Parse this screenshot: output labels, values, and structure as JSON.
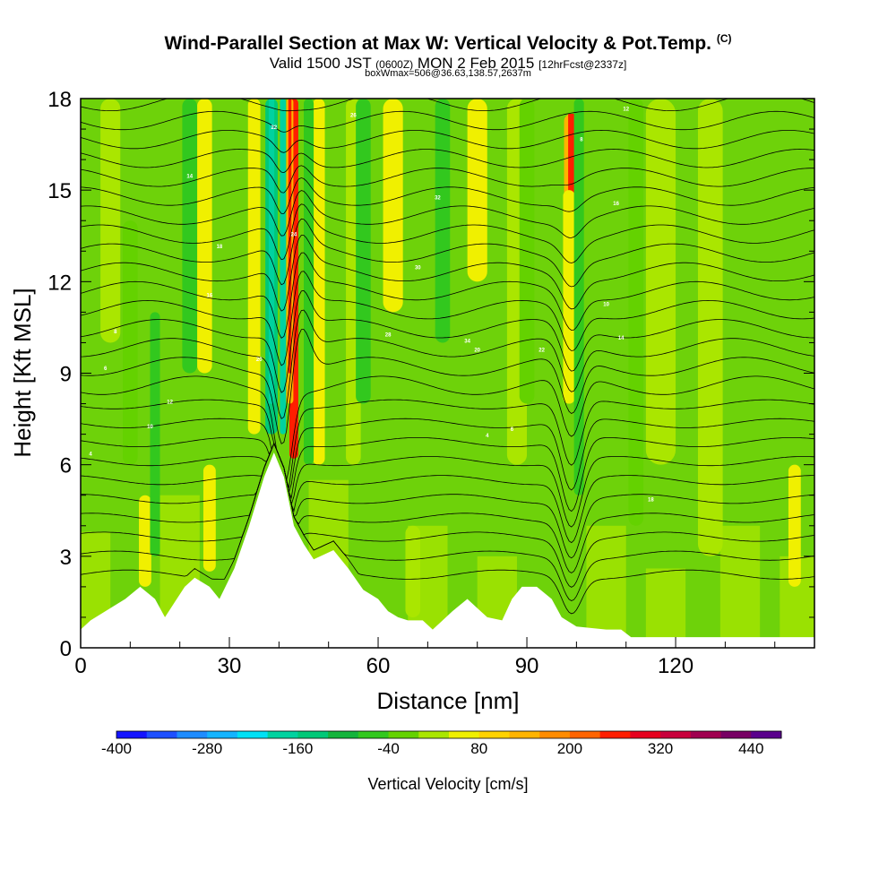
{
  "header": {
    "title": "Wind-Parallel Section at Max W: Vertical Velocity & Pot.Temp.",
    "copyright": "(C)",
    "valid_prefix": "Valid 1500 JST",
    "valid_utc": "(0600Z)",
    "valid_date": "MON 2 Feb 2015",
    "forecast": "[12hrFcst@2337z]",
    "box_info": "boxWmax=506@36.63,138.57,2637m"
  },
  "chart_data": {
    "type": "heatmap",
    "xlabel": "Distance [nm]",
    "ylabel": "Height [Kft MSL]",
    "xlim": [
      0,
      148
    ],
    "ylim": [
      0,
      18
    ],
    "x_ticks": [
      "0",
      "30",
      "60",
      "90",
      "120"
    ],
    "y_ticks": [
      "0",
      "3",
      "6",
      "9",
      "12",
      "15",
      "18"
    ],
    "colorbar": {
      "label": "Vertical Velocity [cm/s]",
      "tick_labels": [
        "-400",
        "-280",
        "-160",
        "-40",
        "80",
        "200",
        "320",
        "440"
      ],
      "colors": [
        "#1414ff",
        "#1e50ff",
        "#1e8cff",
        "#14b4ff",
        "#00e1f5",
        "#00d2a0",
        "#00c878",
        "#14b43c",
        "#32c81e",
        "#64d200",
        "#aae600",
        "#f0f000",
        "#ffd200",
        "#ffb400",
        "#ff8c00",
        "#ff6400",
        "#ff1e00",
        "#e6001e",
        "#c8003c",
        "#a00050",
        "#780064",
        "#5a008c"
      ]
    },
    "background_color": "#6ed20a",
    "terrain_profile": [
      [
        0,
        0.6
      ],
      [
        2,
        0.9
      ],
      [
        5,
        1.2
      ],
      [
        9,
        1.6
      ],
      [
        12,
        2
      ],
      [
        15,
        1.6
      ],
      [
        17,
        1
      ],
      [
        19,
        1.5
      ],
      [
        21,
        2
      ],
      [
        23,
        2.3
      ],
      [
        26,
        2
      ],
      [
        28,
        1.6
      ],
      [
        31,
        2.6
      ],
      [
        34,
        4
      ],
      [
        37,
        5.6
      ],
      [
        39,
        6.4
      ],
      [
        41,
        5.6
      ],
      [
        43,
        4
      ],
      [
        45,
        3.4
      ],
      [
        47,
        2.9
      ],
      [
        51,
        3.2
      ],
      [
        54,
        2.6
      ],
      [
        57,
        1.9
      ],
      [
        60,
        1.6
      ],
      [
        62,
        1.2
      ],
      [
        64,
        1
      ],
      [
        66,
        0.9
      ],
      [
        69,
        0.9
      ],
      [
        71,
        0.6
      ],
      [
        73,
        0.9
      ],
      [
        75,
        1.2
      ],
      [
        78,
        1.6
      ],
      [
        80,
        1.3
      ],
      [
        82,
        1
      ],
      [
        85,
        0.9
      ],
      [
        87,
        1.6
      ],
      [
        89,
        2
      ],
      [
        92,
        2
      ],
      [
        95,
        1.6
      ],
      [
        97,
        1
      ],
      [
        100,
        0.7
      ],
      [
        106,
        0.6
      ],
      [
        109,
        0.6
      ],
      [
        111,
        0.35
      ],
      [
        148,
        0.35
      ]
    ],
    "updraft_bands": [
      {
        "x": 43,
        "w": 1.8,
        "y0": 6.2,
        "y1": 18,
        "level": 3
      },
      {
        "x": 42.2,
        "w": 1.4,
        "y0": 8,
        "y1": 18,
        "level": 2
      },
      {
        "x": 99,
        "w": 3,
        "y0": 10,
        "y1": 17.5,
        "level": 2
      },
      {
        "x": 98.5,
        "w": 2.4,
        "y0": 8,
        "y1": 15,
        "level": 1
      },
      {
        "x": 25,
        "w": 3,
        "y0": 9,
        "y1": 18,
        "level": 1
      },
      {
        "x": 35,
        "w": 2.5,
        "y0": 7,
        "y1": 18,
        "level": 1
      },
      {
        "x": 48,
        "w": 2.5,
        "y0": 6,
        "y1": 18,
        "level": 1
      },
      {
        "x": 63,
        "w": 4,
        "y0": 11,
        "y1": 18,
        "level": 1
      },
      {
        "x": 80,
        "w": 4,
        "y0": 12,
        "y1": 18,
        "level": 1
      },
      {
        "x": 13,
        "w": 2.5,
        "y0": 2,
        "y1": 5,
        "level": 1
      },
      {
        "x": 26,
        "w": 2.5,
        "y0": 2.5,
        "y1": 6,
        "level": 1
      },
      {
        "x": 144,
        "w": 2.5,
        "y0": 2,
        "y1": 6,
        "level": 1
      },
      {
        "x": 67,
        "w": 3,
        "y0": 1,
        "y1": 4,
        "level": 0
      },
      {
        "x": 117,
        "w": 6,
        "y0": 6,
        "y1": 18,
        "level": 0
      },
      {
        "x": 127,
        "w": 5,
        "y0": 3,
        "y1": 18,
        "level": 0
      },
      {
        "x": 6,
        "w": 4,
        "y0": 10,
        "y1": 18,
        "level": 0
      },
      {
        "x": 55,
        "w": 3,
        "y0": 6,
        "y1": 18,
        "level": 0
      },
      {
        "x": 88,
        "w": 4,
        "y0": 6,
        "y1": 18,
        "level": 0
      }
    ],
    "downdraft_bands": [
      {
        "x": 38.5,
        "w": 2.5,
        "y0": 7,
        "y1": 18,
        "level": 2
      },
      {
        "x": 40.8,
        "w": 1.2,
        "y0": 7,
        "y1": 18,
        "level": 3
      },
      {
        "x": 46,
        "w": 2,
        "y0": 6,
        "y1": 18,
        "level": 1
      },
      {
        "x": 100.5,
        "w": 2,
        "y0": 5,
        "y1": 18,
        "level": 1
      },
      {
        "x": 22,
        "w": 3,
        "y0": 9,
        "y1": 18,
        "level": 1
      },
      {
        "x": 15,
        "w": 2,
        "y0": 3,
        "y1": 11,
        "level": 1
      },
      {
        "x": 57,
        "w": 3,
        "y0": 8,
        "y1": 18,
        "level": 1
      },
      {
        "x": 73,
        "w": 3,
        "y0": 10,
        "y1": 18,
        "level": 1
      },
      {
        "x": 90,
        "w": 3,
        "y0": 8,
        "y1": 18,
        "level": 0
      },
      {
        "x": 10,
        "w": 3,
        "y0": 6,
        "y1": 14,
        "level": 0
      },
      {
        "x": 112,
        "w": 3,
        "y0": 4,
        "y1": 18,
        "level": 0
      }
    ],
    "isentrope_labels": [
      "4",
      "6",
      "8",
      "10",
      "12",
      "14",
      "16",
      "18",
      "20",
      "22",
      "24",
      "26",
      "28",
      "30",
      "32",
      "34"
    ]
  }
}
